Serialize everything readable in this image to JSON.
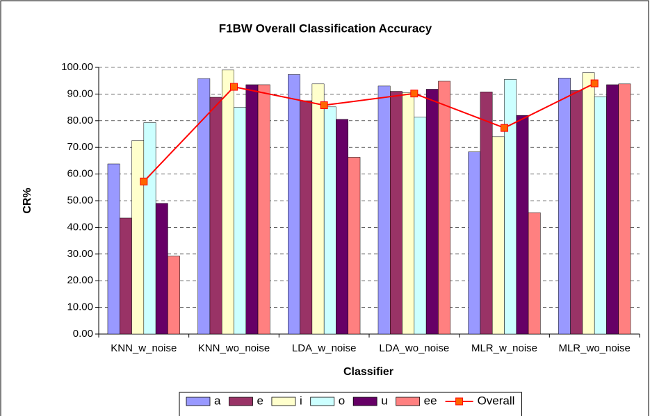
{
  "chart_data": {
    "type": "bar",
    "title": "F1BW Overall Classification Accuracy",
    "x_label": "Classifier",
    "y_label": "CR%",
    "categories": [
      "KNN_w_noise",
      "KNN_wo_noise",
      "LDA_w_noise",
      "LDA_wo_noise",
      "MLR_w_noise",
      "MLR_wo_noise"
    ],
    "series": [
      {
        "name": "a",
        "color": "#9999ff",
        "values": [
          63.8,
          95.8,
          97.3,
          93.0,
          68.3,
          96.0
        ]
      },
      {
        "name": "e",
        "color": "#993366",
        "values": [
          43.5,
          88.8,
          87.5,
          91.0,
          90.8,
          91.3
        ]
      },
      {
        "name": "i",
        "color": "#ffffcc",
        "values": [
          72.5,
          99.0,
          93.8,
          90.5,
          74.0,
          98.0
        ]
      },
      {
        "name": "o",
        "color": "#ccffff",
        "values": [
          79.3,
          85.0,
          85.2,
          81.3,
          95.5,
          89.0
        ]
      },
      {
        "name": "u",
        "color": "#660066",
        "values": [
          49.0,
          93.5,
          80.5,
          91.8,
          82.0,
          93.5
        ]
      },
      {
        "name": "ee",
        "color": "#ff8080",
        "values": [
          29.2,
          93.5,
          66.3,
          94.8,
          45.5,
          93.8
        ]
      },
      {
        "name": "Overall",
        "type": "line",
        "color": "#ff0000",
        "marker_color": "#ff6600",
        "values": [
          57.2,
          92.7,
          85.8,
          90.2,
          77.3,
          94.0
        ]
      }
    ],
    "ylim": [
      0,
      100
    ],
    "yticks": [
      {
        "value": 0,
        "label": "0.00"
      },
      {
        "value": 10,
        "label": "10.00"
      },
      {
        "value": 20,
        "label": "20.00"
      },
      {
        "value": 30,
        "label": "30.00"
      },
      {
        "value": 40,
        "label": "40.00"
      },
      {
        "value": 50,
        "label": "50.00"
      },
      {
        "value": 60,
        "label": "60.00"
      },
      {
        "value": 70,
        "label": "70.00"
      },
      {
        "value": 80,
        "label": "80.00"
      },
      {
        "value": 90,
        "label": "90.00"
      },
      {
        "value": 100,
        "label": "100.00"
      }
    ],
    "grid": true,
    "legend": "bottom"
  }
}
